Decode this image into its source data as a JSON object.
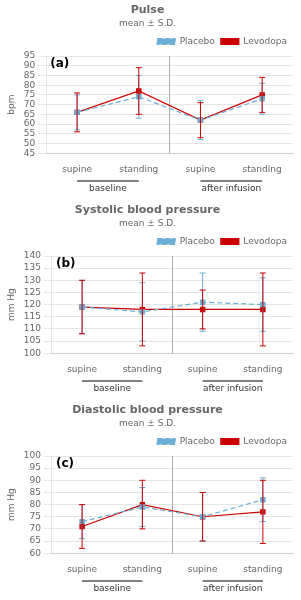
{
  "chart_data": [
    {
      "type": "line",
      "title": "Pulse",
      "subtitle": "mean ± S.D.",
      "panel_label": "(a)",
      "y_label": "bpm",
      "categories": [
        "supine",
        "standing",
        "supine",
        "standing"
      ],
      "group_labels": [
        "baseline",
        "after infusion"
      ],
      "series": [
        {
          "name": "Placebo",
          "color": "#6baed6",
          "line_style": "dashed",
          "marker": "square",
          "values": [
            66,
            74,
            62,
            73
          ],
          "errors": [
            9,
            11,
            10,
            8
          ]
        },
        {
          "name": "Levodopa",
          "color": "#cc0000",
          "line_style": "solid",
          "marker": "square",
          "values": [
            66,
            77,
            62,
            75
          ],
          "errors": [
            10,
            12,
            9,
            9
          ]
        }
      ],
      "ylim": [
        45,
        95
      ],
      "yticks": [
        45,
        50,
        55,
        60,
        65,
        70,
        75,
        80,
        85,
        90,
        95
      ],
      "grid": true,
      "legend": "upper right"
    },
    {
      "type": "line",
      "title": "Systolic blood pressure",
      "subtitle": "mean ± S.D.",
      "panel_label": "(b)",
      "y_label": "mm Hg",
      "categories": [
        "supine",
        "standing",
        "supine",
        "standing"
      ],
      "group_labels": [
        "baseline",
        "after infusion"
      ],
      "series": [
        {
          "name": "Placebo",
          "color": "#6baed6",
          "line_style": "dashed",
          "marker": "square",
          "values": [
            119,
            117,
            121,
            120
          ],
          "errors": [
            11,
            12,
            12,
            11
          ]
        },
        {
          "name": "Levodopa",
          "color": "#cc0000",
          "line_style": "solid",
          "marker": "square",
          "values": [
            119,
            118,
            118,
            118
          ],
          "errors": [
            11,
            15,
            8,
            15
          ]
        }
      ],
      "ylim": [
        100,
        140
      ],
      "yticks": [
        100,
        105,
        110,
        115,
        120,
        125,
        130,
        135,
        140
      ],
      "grid": true,
      "legend": "upper right"
    },
    {
      "type": "line",
      "title": "Diastolic blood pressure",
      "subtitle": "mean ± S.D.",
      "panel_label": "(c)",
      "y_label": "mm Hg",
      "categories": [
        "supine",
        "standing",
        "supine",
        "standing"
      ],
      "group_labels": [
        "baseline",
        "after infusion"
      ],
      "series": [
        {
          "name": "Placebo",
          "color": "#6baed6",
          "line_style": "dashed",
          "marker": "square",
          "values": [
            73,
            79,
            75,
            82
          ],
          "errors": [
            7,
            8,
            10,
            9
          ]
        },
        {
          "name": "Levodopa",
          "color": "#cc0000",
          "line_style": "solid",
          "marker": "square",
          "values": [
            71,
            80,
            75,
            77
          ],
          "errors": [
            9,
            10,
            10,
            13
          ]
        }
      ],
      "ylim": [
        60,
        100
      ],
      "yticks": [
        60,
        65,
        70,
        75,
        80,
        85,
        90,
        95,
        100
      ],
      "grid": true,
      "legend": "upper right"
    }
  ]
}
